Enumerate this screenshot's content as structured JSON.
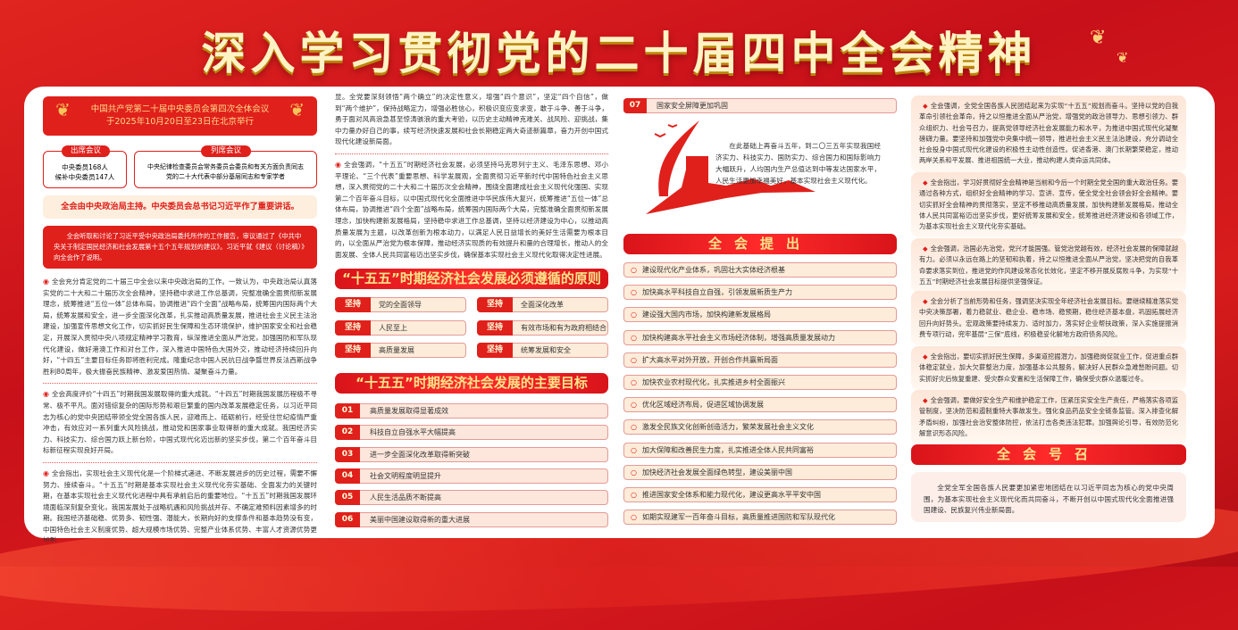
{
  "title": "深入学习贯彻党的二十届四中全会精神",
  "col1": {
    "meeting": [
      "中国共产党第二十届中央委员会第四次全体会议",
      "于2025年10月20日至23日在北京举行"
    ],
    "attend": {
      "label": "出席会议",
      "lines": [
        "中央委员168人",
        "候补中央委员147人"
      ]
    },
    "observe": {
      "label": "列席会议",
      "lines": [
        "中央纪律检查委员会常务委员会委员和有关方面负责同志",
        "党的二十大代表中部分基层同志和专家学者"
      ]
    },
    "banner": "全会由中央政治局主持。中央委员会总书记习近平作了重要讲话。",
    "report": "全会听取和讨论了习近平受中央政治局委托所作的工作报告，审议通过了《中共中央关于制定国民经济和社会发展第十五个五年规划的建议》。习近平就《建议（讨论稿）》向全会作了说明。",
    "paras": [
      "全会充分肯定党的二十届三中全会以来中央政治局的工作。一致认为，中央政治局认真落实党的二十大和二十届历次全会精神，坚持稳中求进工作总基调，完整准确全面贯彻新发展理念，统筹推进“五位一体”总体布局，协调推进“四个全面”战略布局，统筹国内国际两个大局，统筹发展和安全，进一步全面深化改革，扎实推动高质量发展，推进社会主义民主法治建设，加强宣传思想文化工作，切实抓好民生保障和生态环境保护，维护国家安全和社会稳定，开展深入贯彻中央八项规定精神学习教育，纵深推进全面从严治党，加强国防和军队现代化建设，做好港澳工作和对台工作，深入推进中国特色大国外交，推动经济持续回升向好，“十四五”主要目标任务即将胜利完成。隆重纪念中国人民抗日战争暨世界反法西斯战争胜利80周年，极大振奋民族精神、激发爱国热情、凝聚奋斗力量。",
      "全会高度评价“十四五”时期我国发展取得的重大成就。“十四五”时期我国发展历程极不寻常、极不平凡。面对错综复杂的国际形势和艰巨繁重的国内改革发展稳定任务，以习近平同志为核心的党中央团结带领全党全国各族人民，迎难而上、砥砺前行，经受住世纪疫情严重冲击，有效应对一系列重大风险挑战，推动党和国家事业取得新的重大成就。我国经济实力、科技实力、综合国力跃上新台阶，中国式现代化迈出新的坚实步伐，第二个百年奋斗目标新征程实现良好开局。",
      "全会指出，实现社会主义现代化是一个阶梯式递进、不断发展进步的历史过程，需要不懈努力、接续奋斗。“十五五”时期是基本实现社会主义现代化夯实基础、全面发力的关键时期，在基本实现社会主义现代化进程中具有承前启后的重要地位。“十五五”时期我国发展环境面临深刻复杂变化，我国发展处于战略机遇和风险挑战并存、不确定难预料因素增多的时期。我国经济基础稳、优势多、韧性强、潜能大，长期向好的支撑条件和基本趋势没有变，中国特色社会主义制度优势、超大规模市场优势、完整产业体系优势、丰富人才资源优势更加彰"
    ]
  },
  "col2": {
    "cont": "显。全党要深刻领悟“两个确立”的决定性意义，增强“四个意识”，坚定“四个自信”，做到“两个维护”，保持战略定力，增强必胜信心，积极识变应变求变，敢于斗争、善于斗争，勇于面对风高浪急甚至惊涛骇浪的重大考验，以历史主动精神克难关、战风险、迎挑战，集中力量办好自己的事，续写经济快速发展和社会长期稳定两大奇迹新篇章，奋力开创中国式现代化建设新局面。",
    "para": "全会强调，“十五五”时期经济社会发展，必须坚持马克思列宁主义、毛泽东思想、邓小平理论、“三个代表”重要思想、科学发展观，全面贯彻习近平新时代中国特色社会主义思想，深入贯彻党的二十大和二十届历次全会精神，围绕全面建成社会主义现代化强国、实现第二个百年奋斗目标，以中国式现代化全面推进中华民族伟大复兴，统筹推进“五位一体”总体布局，协调推进“四个全面”战略布局，统筹国内国际两个大局，完整准确全面贯彻新发展理念，加快构建新发展格局，坚持稳中求进工作总基调，坚持以经济建设为中心，以推动高质量发展为主题，以改革创新为根本动力，以满足人民日益增长的美好生活需要为根本目的，以全面从严治党为根本保障，推动经济实现质的有效提升和量的合理增长，推动人的全面发展、全体人民共同富裕迈出坚实步伐，确保基本实现社会主义现代化取得决定性进展。",
    "principles_title": "“十五五”时期经济社会发展必须遵循的原则",
    "principle_tag": "坚持",
    "principles": [
      "党的全面领导",
      "全面深化改革",
      "人民至上",
      "有效市场和有为政府相结合",
      "高质量发展",
      "统筹发展和安全"
    ],
    "goals_title": "“十五五”时期经济社会发展的主要目标",
    "goals": [
      {
        "n": "01",
        "t": "高质量发展取得显著成效"
      },
      {
        "n": "02",
        "t": "科技自立自强水平大幅提高"
      },
      {
        "n": "03",
        "t": "进一步全面深化改革取得新突破"
      },
      {
        "n": "04",
        "t": "社会文明程度明显提升"
      },
      {
        "n": "05",
        "t": "人民生活品质不断提高"
      },
      {
        "n": "06",
        "t": "美丽中国建设取得新的重大进展"
      }
    ]
  },
  "col3": {
    "goal7": {
      "n": "07",
      "t": "国家安全屏障更加巩固"
    },
    "vision": "在此基础上再奋斗五年，到二〇三五年实现我国经济实力、科技实力、国防实力、综合国力和国际影响力大幅跃升，人均国内生产总值达到中等发达国家水平，人民生活更加幸福美好，基本实现社会主义现代化。",
    "proposals_title": "全会提出",
    "proposals": [
      "建设现代化产业体系，巩固壮大实体经济根基",
      "加快高水平科技自立自强，引领发展新质生产力",
      "建设强大国内市场，加快构建新发展格局",
      "加快构建高水平社会主义市场经济体制，增强高质量发展动力",
      "扩大高水平对外开放，开创合作共赢新局面",
      "加快农业农村现代化，扎实推进乡村全面振兴",
      "优化区域经济布局，促进区域协调发展",
      "激发全民族文化创新创造活力，繁荣发展社会主义文化",
      "加大保障和改善民生力度，扎实推进全体人民共同富裕",
      "加快经济社会发展全面绿色转型，建设美丽中国",
      "推进国家安全体系和能力现代化，建设更高水平平安中国",
      "如期实现建军一百年奋斗目标，高质量推进国防和军队现代化"
    ]
  },
  "col4": {
    "cards": [
      "全会强调，全党全国各族人民团结起来为实现“十五五”规划而奋斗。坚持以党的自我革命引领社会革命，持之以恒推进全面从严治党，增强党的政治领导力、思想引领力、群众组织力、社会号召力，提高党领导经济社会发展能力和水平，为推进中国式现代化凝聚磅礴力量。要坚持和加强党中央集中统一领导，推进社会主义民主法治建设，充分调动全社会投身中国式现代化建设的积极性主动性创造性。促进香港、澳门长期繁荣稳定，推动两岸关系和平发展、推进祖国统一大业，推动构建人类命运共同体。",
      "全会指出，学习好贯彻好全会精神是当前和今后一个时期全党全国的重大政治任务。要通过各种方式，组织好全会精神的学习、宣讲、宣传，使全党全社会领会好全会精神。要切实抓好全会精神的贯彻落实，坚定不移推动高质量发展，加快构建新发展格局，推动全体人民共同富裕迈出坚实步伐，更好统筹发展和安全，统筹推进经济建设和各领域工作，为基本实现社会主义现代化夯实基础。",
      "全会强调，治国必先治党，党兴才能国强。管党治党越有效，经济社会发展的保障就越有力。必须以永远在路上的坚韧和执着，持之以恒推进全面从严治党，坚决把党的自我革命要求落实到位，推进党的作风建设常态化长效化，坚定不移开展反腐败斗争，为实现“十五五”时期经济社会发展目标提供坚强保证。",
      "全会分析了当前形势和任务，强调坚决实现全年经济社会发展目标。要继续精准落实党中央决策部署，着力稳就业、稳企业、稳市场、稳预期，稳住经济基本盘，巩固拓展经济回升向好势头。宏观政策要持续发力、适时加力，落实好企业帮扶政策，深入实施提振消费专项行动，兜牢基层“三保”底线，积极稳妥化解地方政府债务风险。",
      "全会指出，要切实抓好民生保障，多渠道挖掘潜力，加强稳岗促就业工作，促进重点群体稳定就业，加大欠薪整治力度，加强基本公共服务，解决好人民群众急难愁盼问题。切实抓好灾后恢复重建、受灾群众安置和生活保障工作，确保受灾群众温暖过冬。",
      "全会强调，要做好安全生产和维护稳定工作，压紧压实安全生产责任，严格落实各项监管制度，坚决防范和遏制重特大事故发生。强化食品药品安全全链条监管。深入排查化解矛盾纠纷，加强社会治安整体防控，依法打击各类违法犯罪。加强舆论引导，有效防范化解意识形态风险。"
    ],
    "call_title": "全会号召",
    "call": "全党全军全国各族人民要更加紧密地团结在以习近平同志为核心的党中央周围，为基本实现社会主义现代化而共同奋斗，不断开创以中国式现代化全面推进强国建设、民族复兴伟业新局面。"
  },
  "colors": {
    "red": "#e0201b",
    "gold": "#ffe58a",
    "cream": "#fde7dc"
  },
  "icons": [
    "laurel-icon",
    "bullet-ring-icon",
    "great-wall-illustration",
    "bird-icon"
  ]
}
